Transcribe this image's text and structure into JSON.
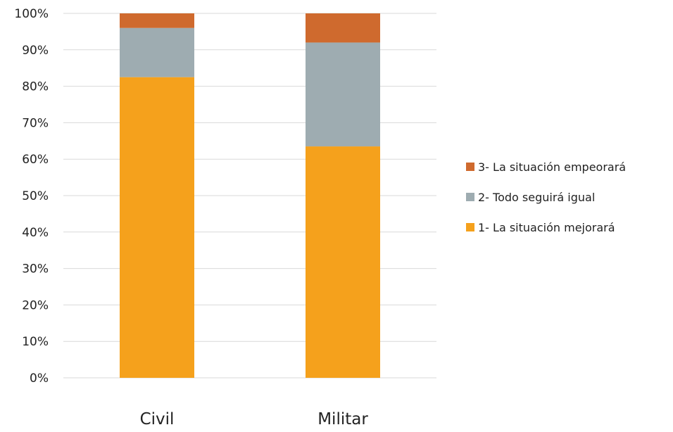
{
  "chart_data": {
    "type": "bar",
    "stacked": true,
    "percent": true,
    "categories": [
      "Civil",
      "Militar"
    ],
    "series": [
      {
        "name": "1- La situación mejorará",
        "values": [
          82.5,
          63.5
        ],
        "color": "#F5A11C"
      },
      {
        "name": "2- Todo seguirá igual",
        "values": [
          13.5,
          28.5
        ],
        "color": "#9EACB1"
      },
      {
        "name": "3- La situación empeorará",
        "values": [
          4.0,
          8.0
        ],
        "color": "#CF6A2E"
      }
    ],
    "yticks": [
      "0%",
      "10%",
      "20%",
      "30%",
      "40%",
      "50%",
      "60%",
      "70%",
      "80%",
      "90%",
      "100%"
    ],
    "ylim": [
      0,
      100
    ],
    "grid": true,
    "gridColor": "#d9d9d9",
    "legend_position": "right",
    "legend_order": [
      2,
      1,
      0
    ]
  }
}
